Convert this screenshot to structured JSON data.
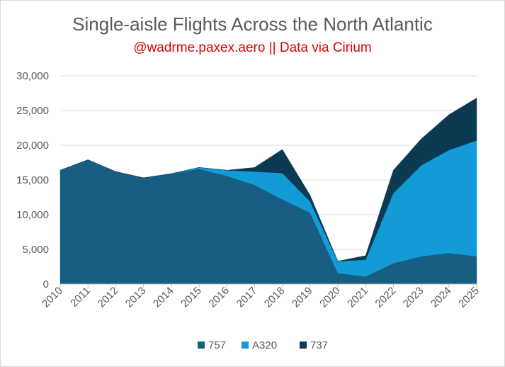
{
  "chart_data": {
    "type": "area",
    "stacked": true,
    "title": "Single-aisle Flights Across the North Atlantic",
    "subtitle": "@wadrme.paxex.aero || Data via Cirium",
    "x": [
      "2010",
      "2011",
      "2012",
      "2013",
      "2014",
      "2015",
      "2016",
      "2017",
      "2018",
      "2019",
      "2020",
      "2021",
      "2022",
      "2023",
      "2024",
      "2025"
    ],
    "ylim": [
      0,
      30000
    ],
    "yticks": [
      "0",
      "5,000",
      "10,000",
      "15,000",
      "20,000",
      "25,000",
      "30,000"
    ],
    "ytick_values": [
      0,
      5000,
      10000,
      15000,
      20000,
      25000,
      30000
    ],
    "grid": true,
    "legend_position": "bottom",
    "series": [
      {
        "name": "757",
        "color": "#175e82",
        "values": [
          16400,
          17900,
          16200,
          15300,
          15900,
          16600,
          15600,
          14300,
          12200,
          10300,
          1600,
          1100,
          3000,
          4000,
          4500,
          4000
        ]
      },
      {
        "name": "A320",
        "color": "#129bd6",
        "values": [
          0,
          0,
          0,
          0,
          0,
          200,
          800,
          1900,
          3800,
          1600,
          1700,
          2400,
          10100,
          13100,
          14800,
          16700
        ]
      },
      {
        "name": "737",
        "color": "#0b3a52",
        "values": [
          0,
          0,
          0,
          0,
          0,
          0,
          0,
          600,
          3400,
          900,
          0,
          600,
          3300,
          3800,
          5100,
          6100
        ]
      }
    ]
  }
}
